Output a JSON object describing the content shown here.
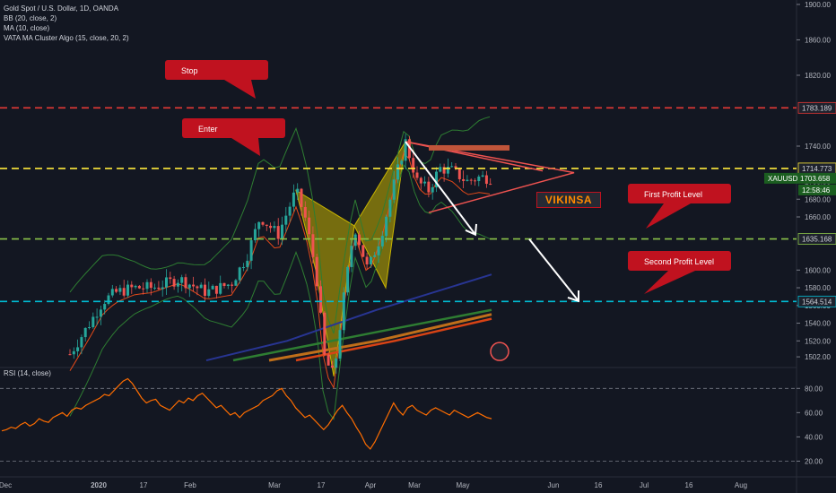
{
  "legend": {
    "symbol": "Gold Spot / U.S. Dollar, 1D, OANDA",
    "bb": "BB (20, close, 2)",
    "ma": "MA (10, close)",
    "vata": "VATA MA Cluster Algo (15, close, 20, 2)"
  },
  "callouts": {
    "stop": "Stop",
    "enter": "Enter",
    "first": "First Profit Level",
    "second": "Second Profit Level"
  },
  "signature": "VIKINSA",
  "rsi_label": "RSI (14, close)",
  "colors": {
    "background": "#131722",
    "stop_line": "#e53935",
    "enter_line": "#ffeb3b",
    "first_line": "#8bc34a",
    "second_line": "#00bcd4",
    "up_candle": "#26a69a",
    "down_candle": "#ef5350",
    "rsi_line": "#ff6d00",
    "callout": "#c0121f",
    "ticker_badge": "#1b5e20"
  },
  "chart_data": {
    "type": "candlestick",
    "symbol": "XAUUSD",
    "y_axis": {
      "ticks": [
        1900,
        1860,
        1820,
        1740,
        1700,
        1680,
        1660,
        1600,
        1580,
        1560,
        1540,
        1520,
        1502
      ],
      "ylim": [
        1495,
        1905
      ]
    },
    "x_axis": {
      "labels": [
        "Dec",
        "2020",
        "17",
        "Feb",
        "Mar",
        "17",
        "Apr",
        "Mar",
        "May",
        "Jun",
        "16",
        "Jul",
        "16",
        "Aug"
      ]
    },
    "price_lines": [
      {
        "name": "stop",
        "value": 1783.189,
        "label": "1783.189"
      },
      {
        "name": "enter",
        "value": 1714.773,
        "label": "1714.773"
      },
      {
        "name": "first-profit",
        "value": 1635.168,
        "label": "1635.168"
      },
      {
        "name": "second-profit",
        "value": 1564.514,
        "label": "1564.514"
      }
    ],
    "current": {
      "ticker": "XAUUSD",
      "price": "1703.658",
      "countdown": "12:58:46"
    },
    "rsi": {
      "ticks": [
        80,
        60,
        40,
        20
      ],
      "levels": [
        80,
        20
      ],
      "ylim": [
        10,
        95
      ],
      "values": [
        45,
        46,
        48,
        47,
        50,
        52,
        49,
        51,
        55,
        53,
        52,
        56,
        58,
        60,
        57,
        62,
        64,
        63,
        66,
        68,
        70,
        72,
        75,
        74,
        78,
        82,
        86,
        88,
        84,
        78,
        72,
        68,
        70,
        71,
        66,
        64,
        62,
        66,
        70,
        68,
        72,
        70,
        74,
        76,
        72,
        68,
        64,
        66,
        62,
        58,
        60,
        56,
        60,
        62,
        64,
        66,
        70,
        72,
        74,
        78,
        80,
        74,
        70,
        64,
        60,
        56,
        58,
        54,
        50,
        46,
        50,
        56,
        62,
        66,
        60,
        55,
        48,
        42,
        34,
        30,
        36,
        44,
        52,
        60,
        68,
        62,
        58,
        64,
        66,
        62,
        60,
        58,
        62,
        64,
        62,
        60,
        58,
        62,
        60,
        58,
        56,
        58,
        60,
        58,
        56,
        55
      ]
    }
  }
}
